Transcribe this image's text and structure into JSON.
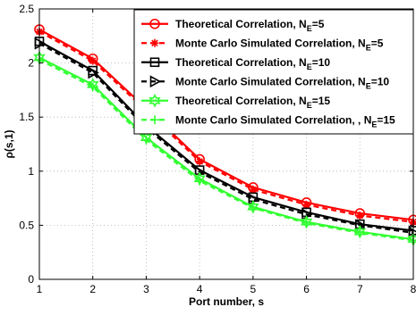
{
  "chart_data": {
    "type": "line",
    "xlabel": "Port number, s",
    "ylabel": "ρ(s,1)",
    "xlim": [
      1,
      8
    ],
    "ylim": [
      0,
      2.5
    ],
    "xticks": [
      "1",
      "2",
      "3",
      "4",
      "5",
      "6",
      "7",
      "8"
    ],
    "yticks": [
      "0",
      "0.5",
      "1",
      "1.5",
      "2",
      "2.5"
    ],
    "grid": true,
    "legend_position": "top-right",
    "x": [
      1,
      2,
      3,
      4,
      5,
      6,
      7,
      8
    ],
    "series": [
      {
        "name": "Theoretical Correlation, N",
        "name_sub": "E",
        "name_suffix": "=5",
        "color": "#ff0000",
        "line_style": "solid",
        "marker": "circle",
        "values": [
          2.31,
          2.04,
          1.58,
          1.11,
          0.85,
          0.71,
          0.61,
          0.55
        ]
      },
      {
        "name": "Monte Carlo Simulated Correlation, N",
        "name_sub": "E",
        "name_suffix": "=5",
        "color": "#ff0000",
        "line_style": "dashed",
        "marker": "asterisk",
        "values": [
          2.29,
          2.02,
          1.56,
          1.09,
          0.83,
          0.69,
          0.59,
          0.53
        ]
      },
      {
        "name": "Theoretical Correlation, N",
        "name_sub": "E",
        "name_suffix": "=10",
        "color": "#000000",
        "line_style": "solid",
        "marker": "square",
        "values": [
          2.2,
          1.93,
          1.42,
          1.01,
          0.76,
          0.62,
          0.51,
          0.45
        ]
      },
      {
        "name": "Monte Carlo  Simulated Correlation, N",
        "name_sub": "E",
        "name_suffix": "=10",
        "color": "#000000",
        "line_style": "dashed",
        "marker": "triangle-right",
        "values": [
          2.18,
          1.91,
          1.4,
          0.99,
          0.74,
          0.6,
          0.5,
          0.43
        ]
      },
      {
        "name": "Theoretical Correlation, N",
        "name_sub": "E",
        "name_suffix": "=15",
        "color": "#33ff33",
        "line_style": "solid",
        "marker": "hexagram",
        "values": [
          2.05,
          1.8,
          1.31,
          0.93,
          0.67,
          0.53,
          0.44,
          0.37
        ]
      },
      {
        "name": "Monte Carlo  Simulated Correlation, , N",
        "name_sub": "E",
        "name_suffix": "=15",
        "color": "#33ff33",
        "line_style": "dashed",
        "marker": "plus",
        "values": [
          2.03,
          1.78,
          1.29,
          0.91,
          0.66,
          0.52,
          0.43,
          0.36
        ]
      }
    ]
  }
}
